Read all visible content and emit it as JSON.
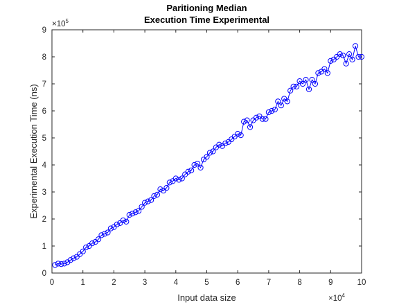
{
  "chart_data": {
    "type": "line",
    "title": [
      "Paritioning Median",
      "Execution Time Experimental"
    ],
    "xlabel": "Input data size",
    "ylabel": "Experimental Execution Time (ns)",
    "x_multiplier": {
      "times": "×10",
      "exp": "4"
    },
    "y_multiplier": {
      "times": "×10",
      "exp": "5"
    },
    "xlim": [
      0,
      100000
    ],
    "ylim": [
      0,
      900000
    ],
    "x_tick_labels": [
      "0",
      "1",
      "2",
      "3",
      "4",
      "5",
      "6",
      "7",
      "8",
      "9",
      "10"
    ],
    "y_tick_labels": [
      "0",
      "1",
      "2",
      "3",
      "4",
      "5",
      "6",
      "7",
      "8",
      "9"
    ],
    "grid": false,
    "legend": "none",
    "series": [
      {
        "color": "#0000ff",
        "marker": "circle",
        "x": [
          1000,
          2000,
          3000,
          4000,
          5000,
          6000,
          7000,
          8000,
          9000,
          10000,
          11000,
          12000,
          13000,
          14000,
          15000,
          16000,
          17000,
          18000,
          19000,
          20000,
          21000,
          22000,
          23000,
          24000,
          25000,
          26000,
          27000,
          28000,
          29000,
          30000,
          31000,
          32000,
          33000,
          34000,
          35000,
          36000,
          37000,
          38000,
          39000,
          40000,
          41000,
          42000,
          43000,
          44000,
          45000,
          46000,
          47000,
          48000,
          49000,
          50000,
          51000,
          52000,
          53000,
          54000,
          55000,
          56000,
          57000,
          58000,
          59000,
          60000,
          61000,
          62000,
          63000,
          64000,
          65000,
          66000,
          67000,
          68000,
          69000,
          70000,
          71000,
          72000,
          73000,
          74000,
          75000,
          76000,
          77000,
          78000,
          79000,
          80000,
          81000,
          82000,
          83000,
          84000,
          85000,
          86000,
          87000,
          88000,
          89000,
          90000,
          91000,
          92000,
          93000,
          94000,
          95000,
          96000,
          97000,
          98000,
          99000,
          100000
        ],
        "y": [
          30000,
          35000,
          33000,
          35000,
          40000,
          48000,
          55000,
          60000,
          70000,
          80000,
          95000,
          100000,
          110000,
          115000,
          125000,
          140000,
          145000,
          150000,
          165000,
          170000,
          180000,
          185000,
          195000,
          190000,
          215000,
          220000,
          225000,
          230000,
          245000,
          260000,
          265000,
          270000,
          285000,
          290000,
          310000,
          305000,
          315000,
          335000,
          340000,
          350000,
          345000,
          350000,
          365000,
          375000,
          380000,
          400000,
          405000,
          390000,
          420000,
          430000,
          445000,
          450000,
          465000,
          475000,
          470000,
          480000,
          485000,
          495000,
          505000,
          515000,
          510000,
          560000,
          565000,
          540000,
          565000,
          575000,
          580000,
          570000,
          570000,
          595000,
          600000,
          605000,
          635000,
          620000,
          645000,
          635000,
          675000,
          690000,
          690000,
          710000,
          700000,
          715000,
          680000,
          715000,
          700000,
          740000,
          745000,
          755000,
          740000,
          785000,
          790000,
          800000,
          810000,
          805000,
          775000,
          810000,
          790000,
          840000,
          800000,
          800000
        ]
      }
    ]
  }
}
